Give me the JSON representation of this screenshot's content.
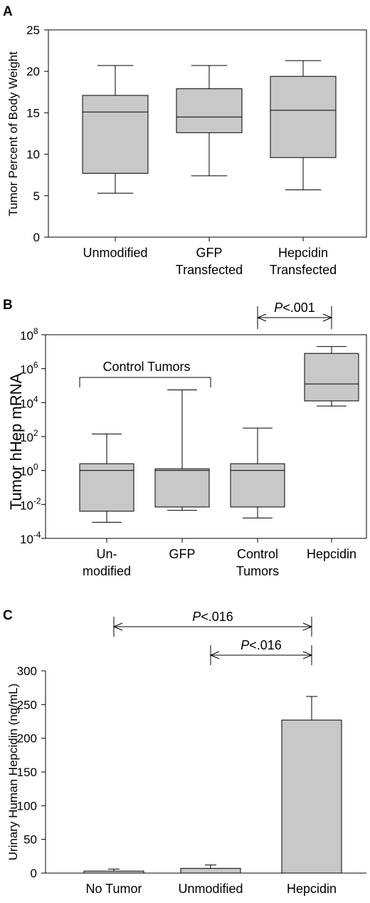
{
  "chart_data": [
    {
      "panel": "A",
      "type": "box",
      "ylabel": "Tumor Percent of Body Weight",
      "ylim": [
        0,
        25
      ],
      "yticks": [
        "0",
        "5",
        "10",
        "15",
        "20",
        "25"
      ],
      "categories": [
        [
          "Unmodified"
        ],
        [
          "GFP",
          "Transfected"
        ],
        [
          "Hepcidin",
          "Transfected"
        ]
      ],
      "boxes": [
        {
          "min": 5.3,
          "q1": 7.7,
          "median": 15.1,
          "q3": 17.1,
          "max": 20.7
        },
        {
          "min": 7.4,
          "q1": 12.6,
          "median": 14.5,
          "q3": 17.9,
          "max": 20.7
        },
        {
          "min": 5.7,
          "q1": 9.6,
          "median": 15.3,
          "q3": 19.4,
          "max": 21.3
        }
      ]
    },
    {
      "panel": "B",
      "type": "box",
      "ylabel": "Tumor hHep mRNA",
      "yscale": "log",
      "ylim_exp": [
        -4,
        8
      ],
      "ytick_exps": [
        "-4",
        "-2",
        "0",
        "2",
        "4",
        "6",
        "8"
      ],
      "categories": [
        [
          "Un-",
          "modified"
        ],
        [
          "GFP"
        ],
        [
          "Control",
          "Tumors"
        ],
        [
          "Hepcidin"
        ]
      ],
      "boxes_log10": [
        {
          "min": -3.05,
          "q1": -2.4,
          "median": 0.0,
          "q3": 0.4,
          "max": 2.15
        },
        {
          "min": -2.35,
          "q1": -2.15,
          "median": 0.0,
          "q3": 0.1,
          "max": 4.75
        },
        {
          "min": -2.8,
          "q1": -2.15,
          "median": 0.0,
          "q3": 0.4,
          "max": 2.5
        },
        {
          "min": 3.8,
          "q1": 4.1,
          "median": 5.1,
          "q3": 6.9,
          "max": 7.3
        }
      ],
      "bracket_label": "Control Tumors",
      "comparison": {
        "from": 2,
        "to": 3,
        "p_italic": "P",
        "p_rest": "<.001"
      }
    },
    {
      "panel": "C",
      "type": "bar",
      "ylabel": "Urinary Human Hepcidin (ng/mL)",
      "ylim": [
        0,
        300
      ],
      "yticks": [
        "0",
        "50",
        "100",
        "150",
        "200",
        "250",
        "300"
      ],
      "categories": [
        "No Tumor",
        "Unmodified",
        "Hepcidin"
      ],
      "values": [
        3,
        7,
        227
      ],
      "errors": [
        3,
        5,
        35
      ],
      "comparisons": [
        {
          "from": 0,
          "to": 2,
          "p_italic": "P",
          "p_rest": "<.016"
        },
        {
          "from": 1,
          "to": 2,
          "p_italic": "P",
          "p_rest": "<.016"
        }
      ]
    }
  ]
}
